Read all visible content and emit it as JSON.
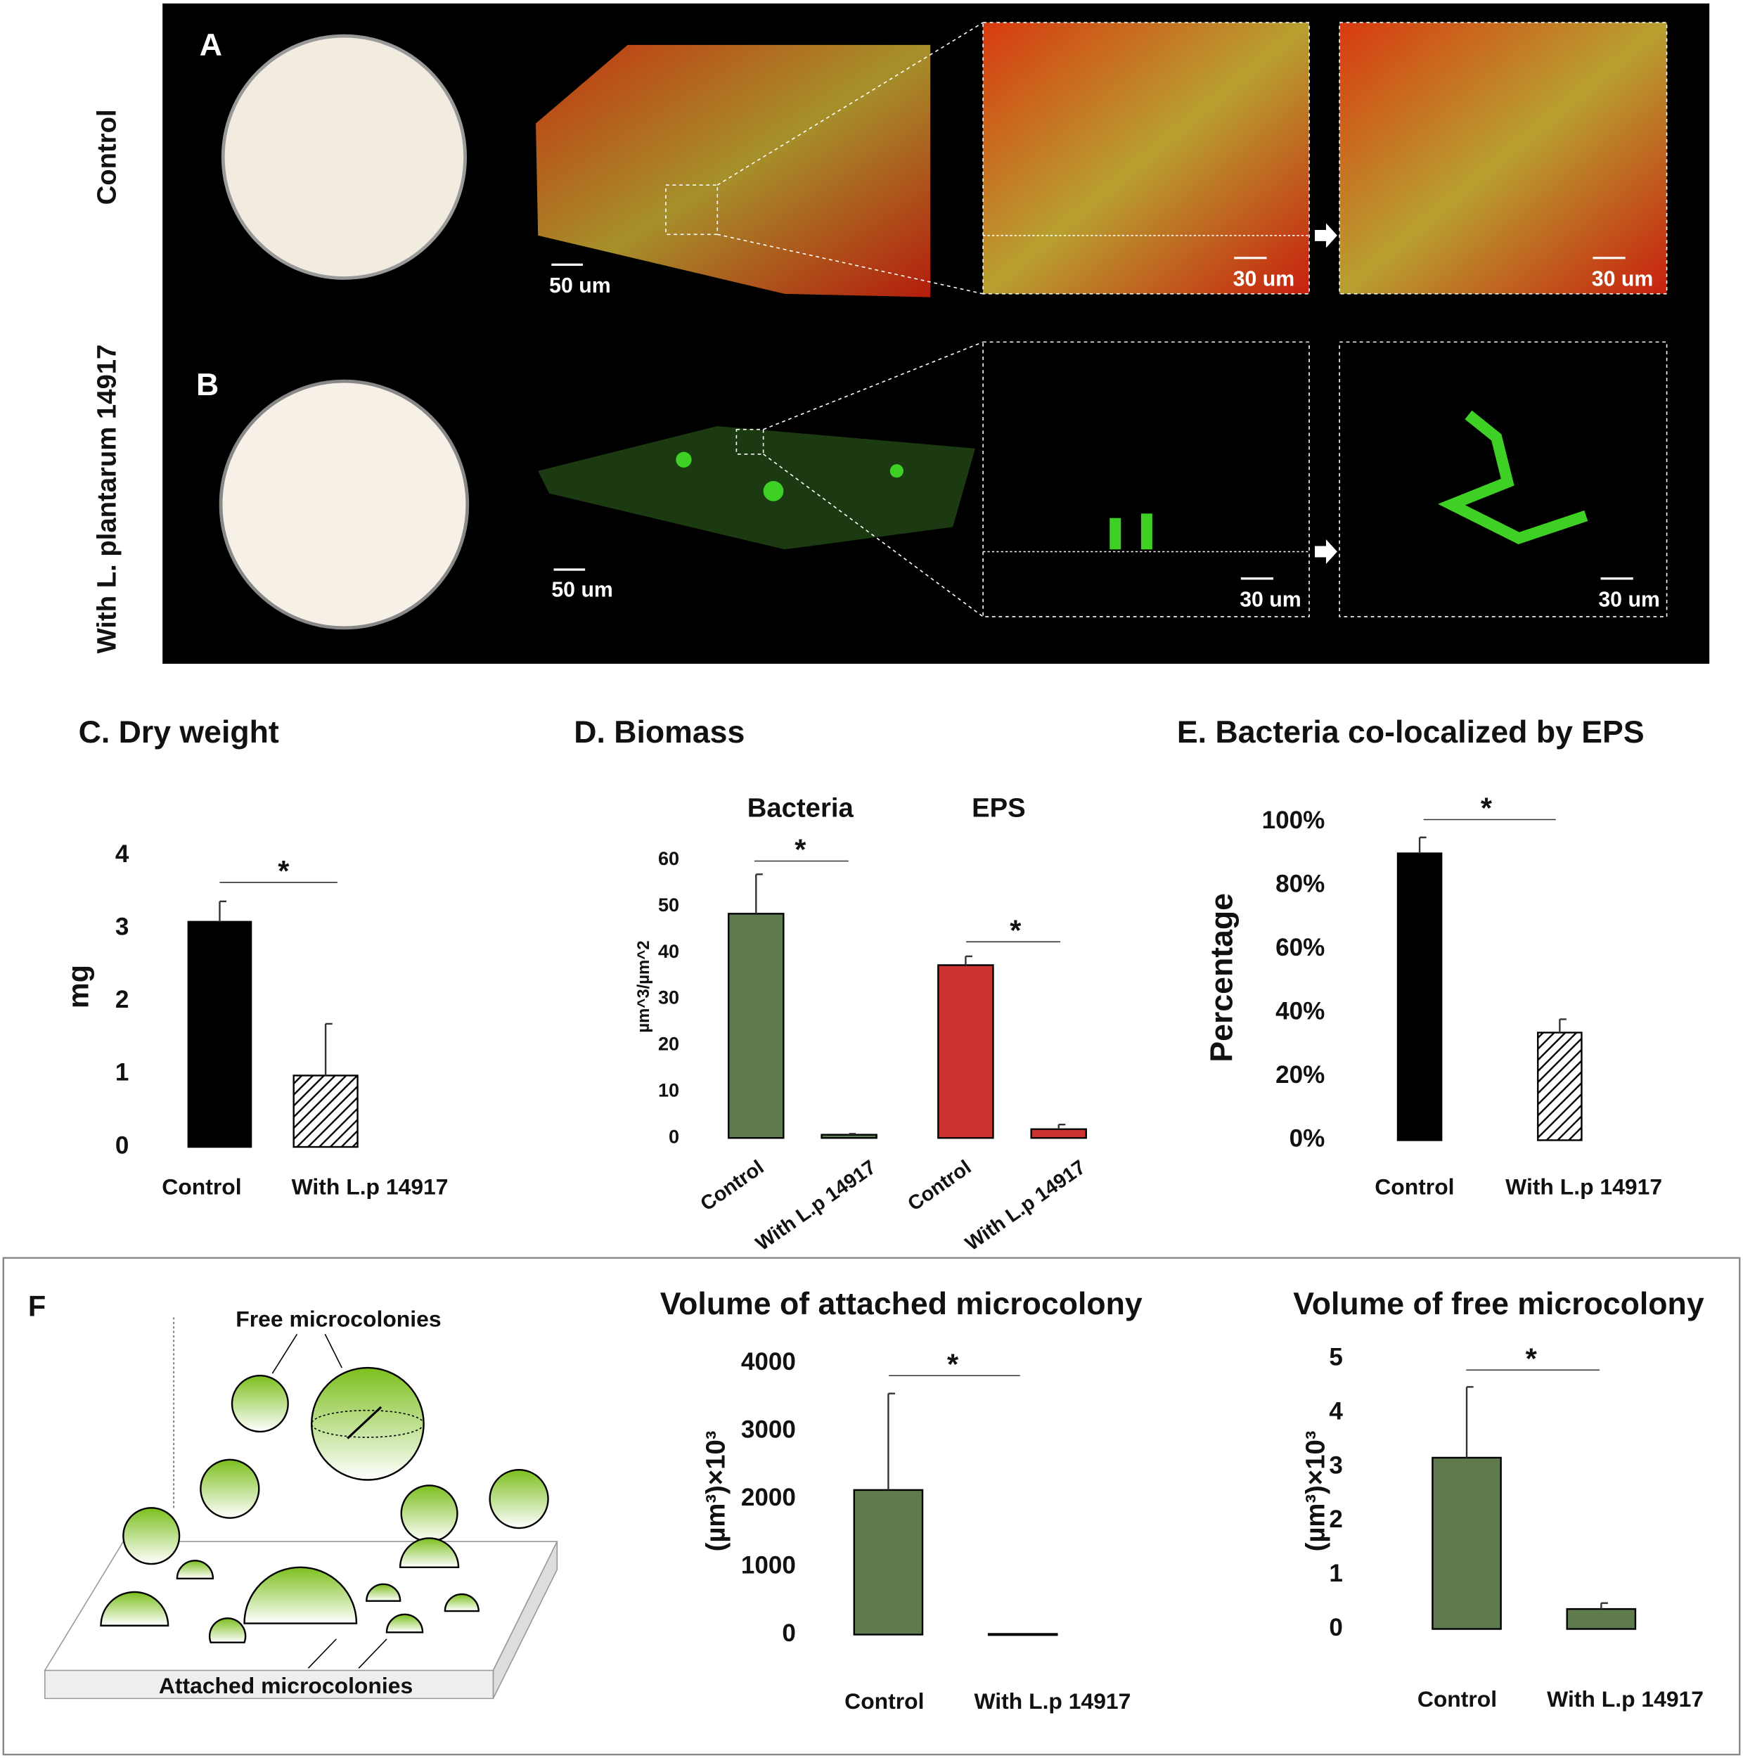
{
  "figure": {
    "panel_labels": [
      "A",
      "B",
      "F"
    ],
    "row_labels": [
      "Control",
      "With L. plantarum 14917"
    ],
    "scale_bars": [
      "50 um",
      "30 um",
      "30 um",
      "50 um",
      "30 um",
      "30 um"
    ],
    "diagram": {
      "free_label": "Free microcolonies",
      "attached_label": "Attached microcolonies"
    }
  },
  "chart_data": [
    {
      "type": "bar",
      "title": "C. Dry weight",
      "y_label": "mg",
      "categories": [
        "Control",
        "With L.p 14917"
      ],
      "values": [
        3.09,
        0.98
      ],
      "errors": [
        0.28,
        0.71
      ],
      "colors": [
        "#000000",
        "#ffffff"
      ],
      "hatch": [
        false,
        true
      ],
      "ylim": [
        0,
        4
      ],
      "yticks": [
        0,
        1,
        2,
        3,
        4
      ],
      "annotations": [
        "*"
      ]
    },
    {
      "type": "bar",
      "title": "D. Biomass",
      "y_label": "µm^3/µm^2",
      "categories": [
        "Control",
        "With L.p 14917"
      ],
      "series": [
        {
          "name": "Bacteria",
          "color": "#5f7a4d",
          "values": [
            48.4,
            0.7
          ],
          "errors": [
            8.5,
            0.2
          ]
        },
        {
          "name": "EPS",
          "color": "#cc3333",
          "values": [
            37.3,
            1.9
          ],
          "errors": [
            1.9,
            1.0
          ]
        }
      ],
      "ylim": [
        0,
        60
      ],
      "yticks": [
        0,
        10,
        20,
        30,
        40,
        50,
        60
      ],
      "annotations": [
        "*",
        "*"
      ]
    },
    {
      "type": "bar",
      "title": "E. Bacteria co-localized by EPS",
      "y_label": "Percentage",
      "categories": [
        "Control",
        "With L.p 14917"
      ],
      "values": [
        90.1,
        33.8
      ],
      "errors": [
        5.0,
        4.2
      ],
      "colors": [
        "#000000",
        "#ffffff"
      ],
      "hatch": [
        false,
        true
      ],
      "ylim": [
        0,
        100
      ],
      "yticks": [
        {
          "value": 0,
          "label": "0%"
        },
        {
          "value": 20,
          "label": "20%"
        },
        {
          "value": 40,
          "label": "40%"
        },
        {
          "value": 60,
          "label": "60%"
        },
        {
          "value": 80,
          "label": "80%"
        },
        {
          "value": 100,
          "label": "100%"
        }
      ],
      "annotations": [
        "*"
      ]
    },
    {
      "type": "bar",
      "title": "Volume of attached microcolony",
      "y_label": "(µm³)×10³",
      "categories": [
        "Control",
        "With L.p 14917"
      ],
      "values": [
        2132,
        10
      ],
      "errors": [
        1422,
        0
      ],
      "colors": [
        "#5f7a4d",
        "#5f7a4d"
      ],
      "hatch": [
        false,
        false
      ],
      "ylim": [
        0,
        4000
      ],
      "yticks": [
        0,
        1000,
        2000,
        3000,
        4000
      ],
      "annotations": [
        "*"
      ]
    },
    {
      "type": "bar",
      "title": "Volume of free microcolony",
      "y_label": "(µm³)×10³",
      "categories": [
        "Control",
        "With L.p 14917"
      ],
      "values": [
        3.17,
        0.37
      ],
      "errors": [
        1.31,
        0.11
      ],
      "colors": [
        "#5f7a4d",
        "#5f7a4d"
      ],
      "hatch": [
        false,
        false
      ],
      "ylim": [
        0,
        5
      ],
      "yticks": [
        0,
        1,
        2,
        3,
        4,
        5
      ],
      "annotations": [
        "*"
      ]
    }
  ]
}
